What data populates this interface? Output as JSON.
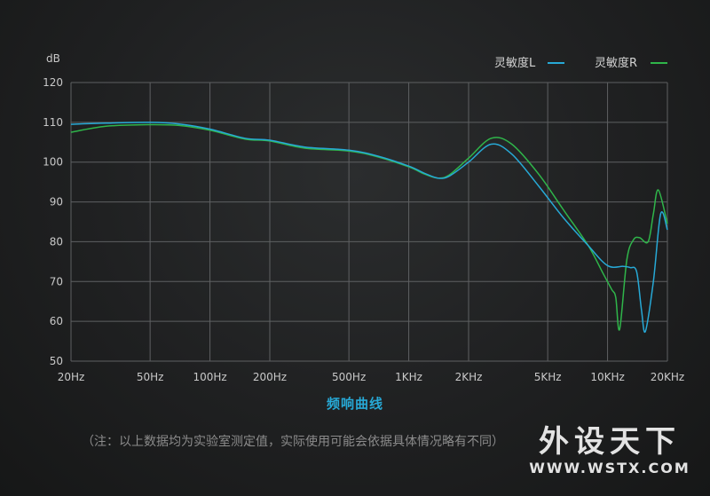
{
  "chart_data": {
    "type": "line",
    "ylabel": "dB",
    "ylim": [
      50,
      120
    ],
    "yticks": [
      50,
      60,
      70,
      80,
      90,
      100,
      110,
      120
    ],
    "xscale": "log",
    "xlim": [
      20,
      20000
    ],
    "xticks": [
      {
        "label": "20Hz",
        "hz": 20
      },
      {
        "label": "50Hz",
        "hz": 50
      },
      {
        "label": "100Hz",
        "hz": 100
      },
      {
        "label": "200Hz",
        "hz": 200
      },
      {
        "label": "500Hz",
        "hz": 500
      },
      {
        "label": "1KHz",
        "hz": 1000
      },
      {
        "label": "2KHz",
        "hz": 2000
      },
      {
        "label": "5KHz",
        "hz": 5000
      },
      {
        "label": "10KHz",
        "hz": 10000
      },
      {
        "label": "20KHz",
        "hz": 20000
      }
    ],
    "grid": true,
    "legend_position": "top-right",
    "series": [
      {
        "name": "灵敏度L",
        "color": "#27a9d6",
        "x": [
          20,
          30,
          50,
          70,
          100,
          150,
          200,
          300,
          500,
          700,
          1000,
          1200,
          1400,
          1600,
          2000,
          2600,
          3300,
          4500,
          6000,
          8000,
          10000,
          12000,
          13000,
          14000,
          14800,
          15500,
          17000,
          18500,
          20000
        ],
        "y": [
          109.5,
          109.8,
          110.0,
          109.6,
          108.3,
          106.0,
          105.5,
          103.8,
          103.0,
          101.5,
          99.0,
          97.2,
          96.0,
          96.5,
          100.0,
          104.5,
          102.0,
          94.0,
          86.0,
          79.0,
          74.0,
          73.8,
          73.5,
          72.5,
          63.0,
          57.5,
          70.0,
          87.0,
          83.0
        ]
      },
      {
        "name": "灵敏度R",
        "color": "#2fb54a",
        "x": [
          20,
          30,
          50,
          70,
          100,
          150,
          200,
          300,
          500,
          700,
          1000,
          1200,
          1400,
          1600,
          2000,
          2600,
          3300,
          4500,
          6000,
          8000,
          9500,
          10500,
          11000,
          11500,
          12500,
          13500,
          14500,
          16000,
          17000,
          18000,
          20000
        ],
        "y": [
          107.5,
          109.0,
          109.4,
          109.2,
          108.0,
          105.8,
          105.3,
          103.5,
          102.8,
          101.3,
          98.8,
          97.0,
          96.0,
          96.8,
          101.0,
          106.0,
          104.5,
          97.0,
          88.0,
          79.0,
          72.0,
          68.0,
          66.0,
          58.0,
          75.5,
          80.5,
          81.0,
          80.0,
          87.0,
          93.0,
          84.5
        ]
      }
    ]
  },
  "caption": "频响曲线",
  "note": "（注：以上数据均为实验室测定值，实际使用可能会依据具体情况略有不同）",
  "watermark": {
    "text": "外设天下",
    "url": "WWW.WSTX.COM"
  }
}
